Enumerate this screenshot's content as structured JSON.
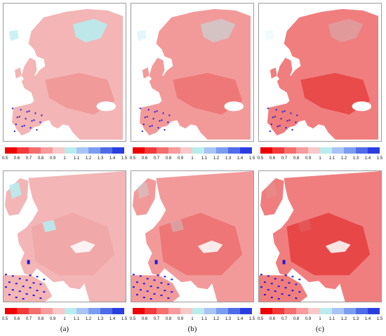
{
  "colorbar": {
    "tick_labels": [
      "0.5",
      "0.6",
      "0.7",
      "0.8",
      "0.9",
      "1",
      "1.1",
      "1.2",
      "1.3",
      "1.4",
      "1.5"
    ],
    "colors": [
      "#ee0000",
      "#f23a3a",
      "#f56e6e",
      "#f79c9c",
      "#f9c8c8",
      "#b8ecee",
      "#a8c4f4",
      "#7c9cf0",
      "#4f6ce8",
      "#2a3ee0",
      "#0a0acc"
    ]
  },
  "panels": {
    "top": [
      {
        "name": "top-a",
        "style": "a"
      },
      {
        "name": "top-b",
        "style": "b"
      },
      {
        "name": "top-c",
        "style": "c"
      }
    ],
    "bottom": [
      {
        "name": "bottom-a",
        "style": "a"
      },
      {
        "name": "bottom-b",
        "style": "b"
      },
      {
        "name": "bottom-c",
        "style": "c"
      }
    ]
  },
  "captions": [
    "(a)",
    "(b)",
    "(c)"
  ]
}
